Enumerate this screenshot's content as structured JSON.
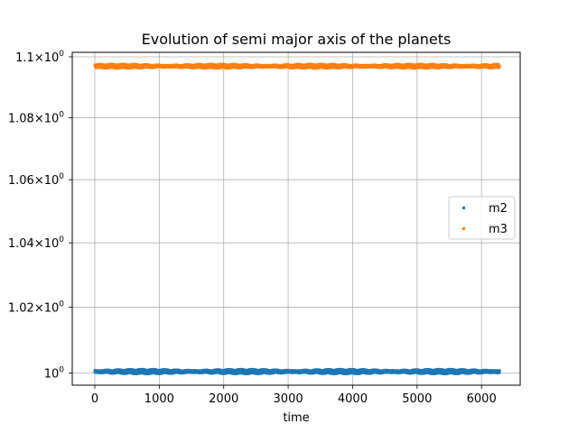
{
  "chart_data": {
    "type": "scatter",
    "title": "Evolution of semi major axis of the planets",
    "xlabel": "time",
    "ylabel": "",
    "xlim": [
      -350,
      6600
    ],
    "ylim": [
      0.9963,
      1.1015
    ],
    "x_ticks": [
      0,
      1000,
      2000,
      3000,
      4000,
      5000,
      6000
    ],
    "x_tick_labels": [
      "0",
      "1000",
      "2000",
      "3000",
      "4000",
      "5000",
      "6000"
    ],
    "y_ticks": [
      1.0,
      1.02,
      1.04,
      1.06,
      1.08,
      1.1
    ],
    "y_tick_labels": [
      {
        "mantissa": "",
        "base": "10",
        "exp": "0"
      },
      {
        "mantissa": "1.02×",
        "base": "10",
        "exp": "0"
      },
      {
        "mantissa": "1.04×",
        "base": "10",
        "exp": "0"
      },
      {
        "mantissa": "1.06×",
        "base": "10",
        "exp": "0"
      },
      {
        "mantissa": "1.08×",
        "base": "10",
        "exp": "0"
      },
      {
        "mantissa": "1.1×",
        "base": "10",
        "exp": "0"
      }
    ],
    "y_scale": "log",
    "grid": "x-and-y",
    "legend_position": "center-right",
    "x_range": [
      0,
      6280
    ],
    "series": [
      {
        "name": "m2",
        "color": "#1f77b4",
        "y_mean": 1.0004,
        "y_amplitude": 0.0007
      },
      {
        "name": "m3",
        "color": "#ff7f0e",
        "y_mean": 1.0969,
        "y_amplitude": 0.0007
      }
    ]
  }
}
